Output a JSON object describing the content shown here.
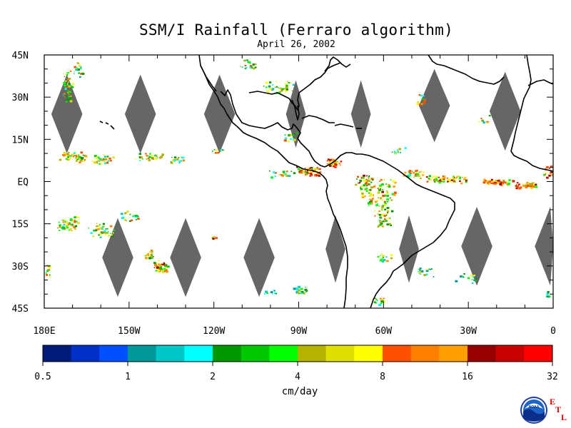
{
  "title": "SSM/I Rainfall (Ferraro algorithm)",
  "subtitle": "April 26, 2002",
  "map": {
    "lon_range": [
      -180,
      0
    ],
    "lat_range": [
      -45,
      45
    ],
    "lat_labels": [
      "45N",
      "30N",
      "15N",
      "EQ",
      "15S",
      "30S",
      "45S"
    ],
    "lat_values": [
      45,
      30,
      15,
      0,
      -15,
      -30,
      -45
    ],
    "lon_labels": [
      "180E",
      "150W",
      "120W",
      "90W",
      "60W",
      "30W",
      "0"
    ],
    "lon_values": [
      -180,
      -150,
      -120,
      -90,
      -60,
      -30,
      0
    ],
    "gap_color": "#666666",
    "coast_color": "#000000"
  },
  "colorbar": {
    "units": "cm/day",
    "tick_labels": [
      "0.5",
      "1",
      "2",
      "4",
      "8",
      "16",
      "32"
    ],
    "colors": [
      "#001a7a",
      "#0030c8",
      "#0050ff",
      "#009898",
      "#00c8c8",
      "#00ffff",
      "#009600",
      "#00c800",
      "#00ff00",
      "#b4b400",
      "#e0e000",
      "#ffff00",
      "#ff5000",
      "#ff8000",
      "#ffa000",
      "#960000",
      "#c80000",
      "#ff0000"
    ]
  },
  "logo": {
    "icon": "noaa-logo-icon",
    "name": "NOAA",
    "letters": [
      "E",
      "T",
      "L"
    ]
  }
}
